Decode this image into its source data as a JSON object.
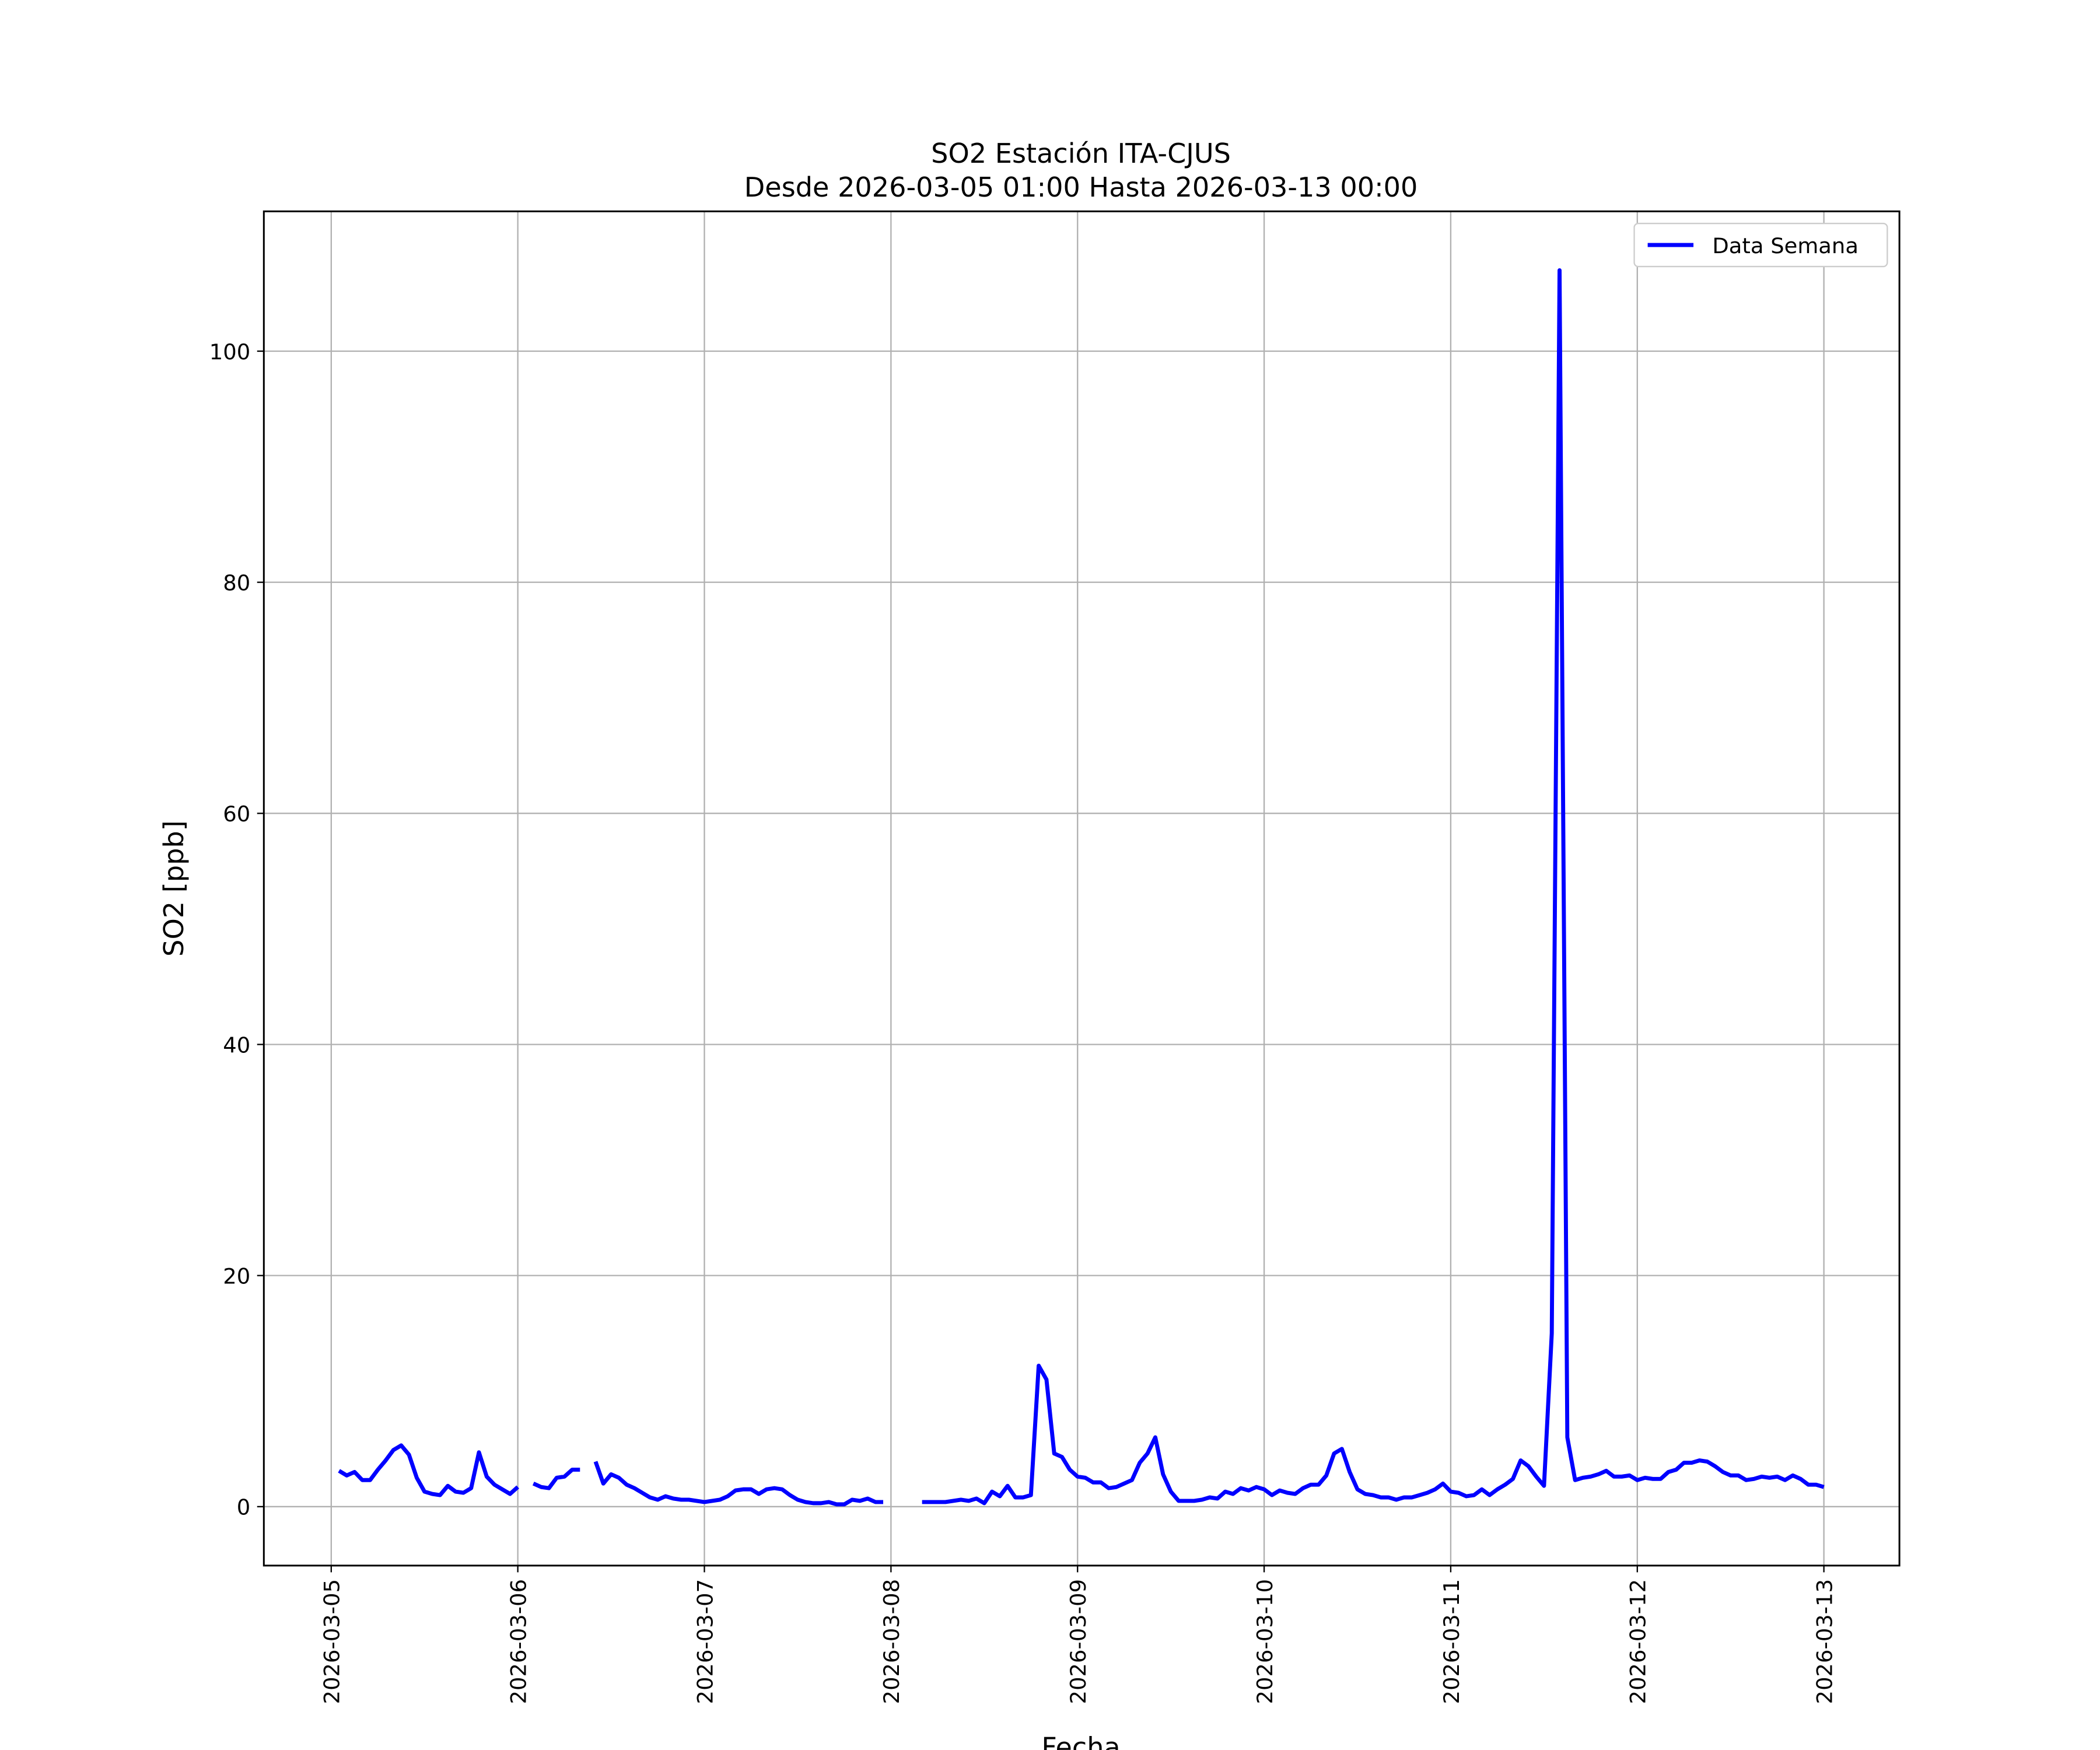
{
  "chart_data": {
    "type": "line",
    "title": "SO2 Estación ITA-CJUS",
    "subtitle": "Desde 2026-03-05 01:00 Hasta 2026-03-13 00:00",
    "xlabel": "Fecha",
    "ylabel": "SO2 [ppb]",
    "x": [
      "2026-03-05 01:00",
      "2026-03-05 02:00",
      "2026-03-05 03:00",
      "2026-03-05 04:00",
      "2026-03-05 05:00",
      "2026-03-05 06:00",
      "2026-03-05 07:00",
      "2026-03-05 08:00",
      "2026-03-05 09:00",
      "2026-03-05 10:00",
      "2026-03-05 11:00",
      "2026-03-05 12:00",
      "2026-03-05 13:00",
      "2026-03-05 14:00",
      "2026-03-05 15:00",
      "2026-03-05 16:00",
      "2026-03-05 17:00",
      "2026-03-05 18:00",
      "2026-03-05 19:00",
      "2026-03-05 20:00",
      "2026-03-05 21:00",
      "2026-03-05 22:00",
      "2026-03-05 23:00",
      "2026-03-06 00:00",
      "2026-03-06 01:00",
      "2026-03-06 02:00",
      "2026-03-06 03:00",
      "2026-03-06 04:00",
      "2026-03-06 05:00",
      "2026-03-06 06:00",
      "2026-03-06 07:00",
      "2026-03-06 08:00",
      "2026-03-06 09:00",
      "2026-03-06 10:00",
      "2026-03-06 11:00",
      "2026-03-06 12:00",
      "2026-03-06 13:00",
      "2026-03-06 14:00",
      "2026-03-06 15:00",
      "2026-03-06 16:00",
      "2026-03-06 17:00",
      "2026-03-06 18:00",
      "2026-03-06 19:00",
      "2026-03-06 20:00",
      "2026-03-06 21:00",
      "2026-03-06 22:00",
      "2026-03-06 23:00",
      "2026-03-07 00:00",
      "2026-03-07 01:00",
      "2026-03-07 02:00",
      "2026-03-07 03:00",
      "2026-03-07 04:00",
      "2026-03-07 05:00",
      "2026-03-07 06:00",
      "2026-03-07 07:00",
      "2026-03-07 08:00",
      "2026-03-07 09:00",
      "2026-03-07 10:00",
      "2026-03-07 11:00",
      "2026-03-07 12:00",
      "2026-03-07 13:00",
      "2026-03-07 14:00",
      "2026-03-07 15:00",
      "2026-03-07 16:00",
      "2026-03-07 17:00",
      "2026-03-07 18:00",
      "2026-03-07 19:00",
      "2026-03-07 20:00",
      "2026-03-07 21:00",
      "2026-03-07 22:00",
      "2026-03-07 23:00",
      "2026-03-08 00:00",
      "2026-03-08 01:00",
      "2026-03-08 02:00",
      "2026-03-08 03:00",
      "2026-03-08 04:00",
      "2026-03-08 05:00",
      "2026-03-08 06:00",
      "2026-03-08 07:00",
      "2026-03-08 08:00",
      "2026-03-08 09:00",
      "2026-03-08 10:00",
      "2026-03-08 11:00",
      "2026-03-08 12:00",
      "2026-03-08 13:00",
      "2026-03-08 14:00",
      "2026-03-08 15:00",
      "2026-03-08 16:00",
      "2026-03-08 17:00",
      "2026-03-08 18:00",
      "2026-03-08 19:00",
      "2026-03-08 20:00",
      "2026-03-08 21:00",
      "2026-03-08 22:00",
      "2026-03-08 23:00",
      "2026-03-09 00:00",
      "2026-03-09 01:00",
      "2026-03-09 02:00",
      "2026-03-09 03:00",
      "2026-03-09 04:00",
      "2026-03-09 05:00",
      "2026-03-09 06:00",
      "2026-03-09 07:00",
      "2026-03-09 08:00",
      "2026-03-09 09:00",
      "2026-03-09 10:00",
      "2026-03-09 11:00",
      "2026-03-09 12:00",
      "2026-03-09 13:00",
      "2026-03-09 14:00",
      "2026-03-09 15:00",
      "2026-03-09 16:00",
      "2026-03-09 17:00",
      "2026-03-09 18:00",
      "2026-03-09 19:00",
      "2026-03-09 20:00",
      "2026-03-09 21:00",
      "2026-03-09 22:00",
      "2026-03-09 23:00",
      "2026-03-10 00:00",
      "2026-03-10 01:00",
      "2026-03-10 02:00",
      "2026-03-10 03:00",
      "2026-03-10 04:00",
      "2026-03-10 05:00",
      "2026-03-10 06:00",
      "2026-03-10 07:00",
      "2026-03-10 08:00",
      "2026-03-10 09:00",
      "2026-03-10 10:00",
      "2026-03-10 11:00",
      "2026-03-10 12:00",
      "2026-03-10 13:00",
      "2026-03-10 14:00",
      "2026-03-10 15:00",
      "2026-03-10 16:00",
      "2026-03-10 17:00",
      "2026-03-10 18:00",
      "2026-03-10 19:00",
      "2026-03-10 20:00",
      "2026-03-10 21:00",
      "2026-03-10 22:00",
      "2026-03-10 23:00",
      "2026-03-11 00:00",
      "2026-03-11 01:00",
      "2026-03-11 02:00",
      "2026-03-11 03:00",
      "2026-03-11 04:00",
      "2026-03-11 05:00",
      "2026-03-11 06:00",
      "2026-03-11 07:00",
      "2026-03-11 08:00",
      "2026-03-11 09:00",
      "2026-03-11 10:00",
      "2026-03-11 11:00",
      "2026-03-11 12:00",
      "2026-03-11 13:00",
      "2026-03-11 14:00",
      "2026-03-11 15:00",
      "2026-03-11 16:00",
      "2026-03-11 17:00",
      "2026-03-11 18:00",
      "2026-03-11 19:00",
      "2026-03-11 20:00",
      "2026-03-11 21:00",
      "2026-03-11 22:00",
      "2026-03-11 23:00",
      "2026-03-12 00:00",
      "2026-03-12 01:00",
      "2026-03-12 02:00",
      "2026-03-12 03:00",
      "2026-03-12 04:00",
      "2026-03-12 05:00",
      "2026-03-12 06:00",
      "2026-03-12 07:00",
      "2026-03-12 08:00",
      "2026-03-12 09:00",
      "2026-03-12 10:00",
      "2026-03-12 11:00",
      "2026-03-12 12:00",
      "2026-03-12 13:00",
      "2026-03-12 14:00",
      "2026-03-12 15:00",
      "2026-03-12 16:00",
      "2026-03-12 17:00",
      "2026-03-12 18:00",
      "2026-03-12 19:00",
      "2026-03-12 20:00",
      "2026-03-12 21:00",
      "2026-03-12 22:00",
      "2026-03-12 23:00",
      "2026-03-13 00:00"
    ],
    "series": [
      {
        "name": "Data Semana",
        "color": "#0000ff",
        "values": [
          3.1,
          2.7,
          3.0,
          2.3,
          2.3,
          3.2,
          4.0,
          4.9,
          5.3,
          4.5,
          2.5,
          1.3,
          1.1,
          1.0,
          1.8,
          1.3,
          1.2,
          1.6,
          4.7,
          2.6,
          1.9,
          1.5,
          1.1,
          1.7,
          null,
          2.0,
          1.7,
          1.6,
          2.5,
          2.6,
          3.2,
          3.2,
          null,
          3.9,
          2.0,
          2.8,
          2.5,
          1.9,
          1.6,
          1.2,
          0.8,
          0.6,
          0.9,
          0.7,
          0.6,
          0.6,
          0.5,
          0.4,
          0.5,
          0.6,
          0.9,
          1.4,
          1.5,
          1.5,
          1.1,
          1.5,
          1.6,
          1.5,
          1.0,
          0.6,
          0.4,
          0.3,
          0.3,
          0.4,
          0.2,
          0.2,
          0.6,
          0.5,
          0.7,
          0.4,
          0.4,
          null,
          null,
          null,
          null,
          0.4,
          0.4,
          0.4,
          0.4,
          0.5,
          0.6,
          0.5,
          0.7,
          0.3,
          1.3,
          0.9,
          1.8,
          0.8,
          0.8,
          1.0,
          12.2,
          11.0,
          4.6,
          4.3,
          3.2,
          2.6,
          2.5,
          2.1,
          2.1,
          1.6,
          1.7,
          2.0,
          2.3,
          3.8,
          4.6,
          6.0,
          2.8,
          1.3,
          0.5,
          0.5,
          0.5,
          0.6,
          0.8,
          0.7,
          1.3,
          1.1,
          1.6,
          1.4,
          1.7,
          1.5,
          1.0,
          1.4,
          1.2,
          1.1,
          1.6,
          1.9,
          1.9,
          2.7,
          4.6,
          5.0,
          3.0,
          1.5,
          1.1,
          1.0,
          0.8,
          0.8,
          0.6,
          0.8,
          0.8,
          1.0,
          1.2,
          1.5,
          2.0,
          1.3,
          1.2,
          0.9,
          1.0,
          1.5,
          1.0,
          1.5,
          1.9,
          2.4,
          4.0,
          3.5,
          2.6,
          1.8,
          15.0,
          107.0,
          6.0,
          2.3,
          2.5,
          2.6,
          2.8,
          3.1,
          2.6,
          2.6,
          2.7,
          2.3,
          2.5,
          2.4,
          2.4,
          3.0,
          3.2,
          3.8,
          3.8,
          4.0,
          3.9,
          3.5,
          3.0,
          2.7,
          2.7,
          2.3,
          2.4,
          2.6,
          2.5,
          2.6,
          2.3,
          2.7,
          2.4,
          1.9,
          1.9,
          1.7
        ]
      }
    ],
    "xlim": [
      "2026-03-04 15:20",
      "2026-03-13 09:43"
    ],
    "xticks": [
      "2026-03-05",
      "2026-03-06",
      "2026-03-07",
      "2026-03-08",
      "2026-03-09",
      "2026-03-10",
      "2026-03-11",
      "2026-03-12",
      "2026-03-13"
    ],
    "ylim": [
      -5.1,
      112.1
    ],
    "yticks": [
      0,
      20,
      40,
      60,
      80,
      100
    ],
    "grid": true,
    "legend": "upper right"
  }
}
